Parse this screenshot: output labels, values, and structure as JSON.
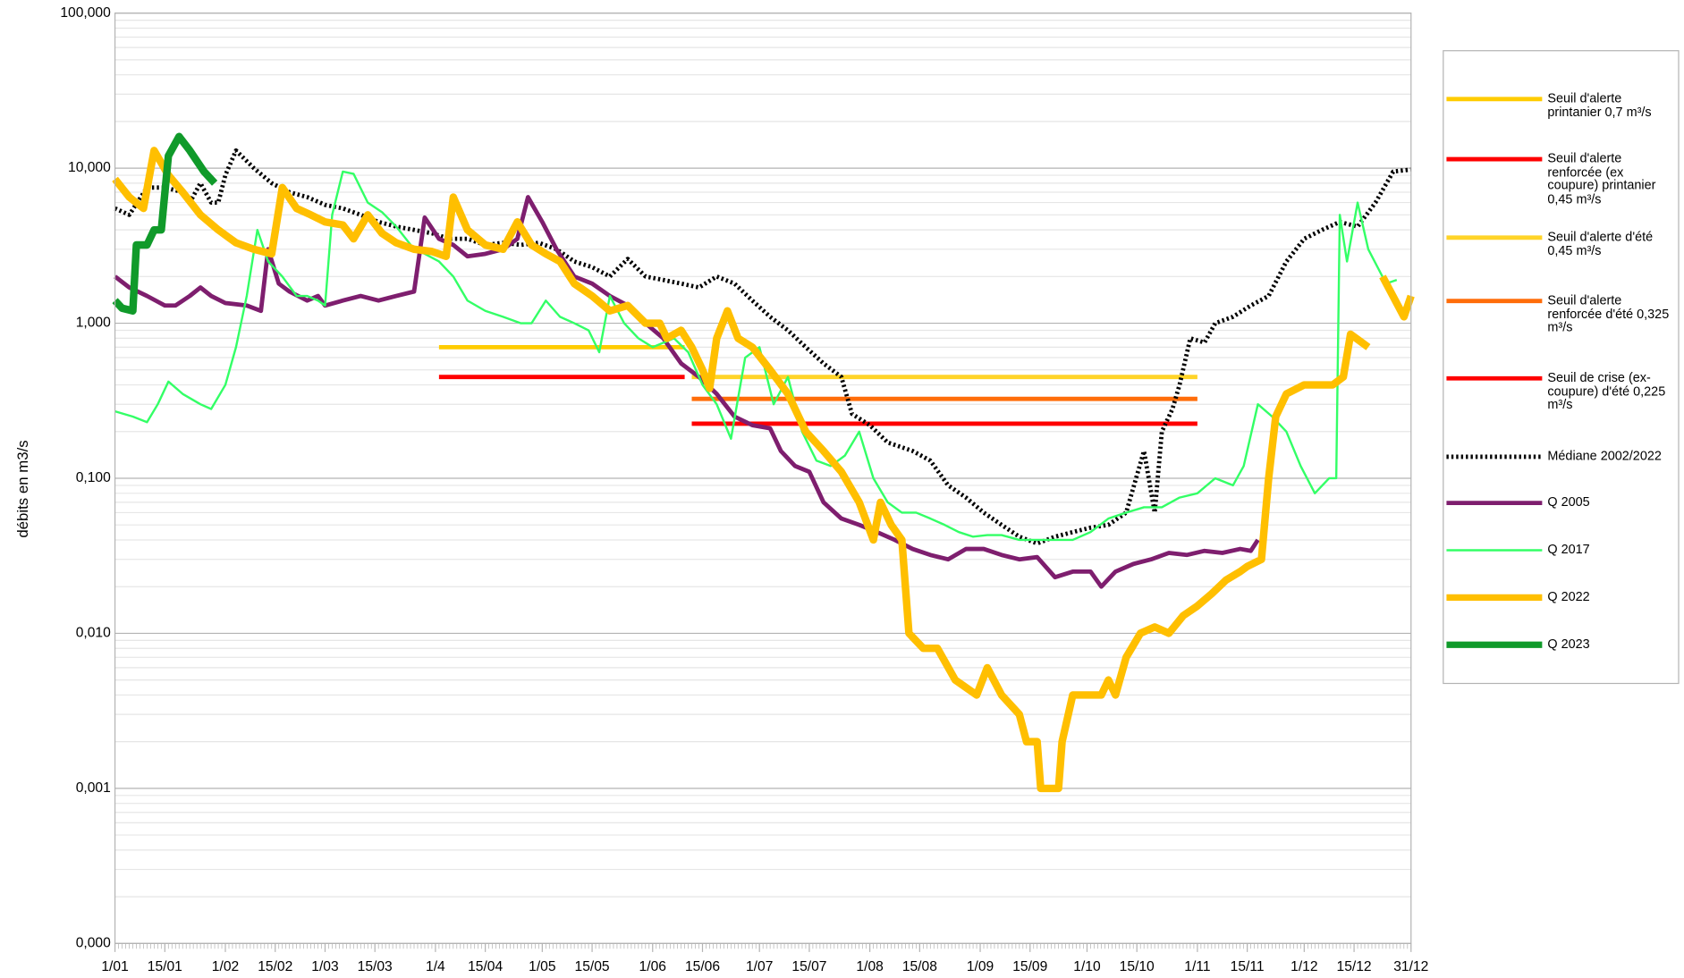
{
  "chart_data": {
    "type": "line",
    "y_label": "débits en m3/s",
    "log_y": true,
    "grid": true,
    "legend": "right",
    "xlim": [
      1,
      365
    ],
    "xticks": [
      {
        "value": 1,
        "label": "1/01"
      },
      {
        "value": 15,
        "label": "15/01"
      },
      {
        "value": 32,
        "label": "1/02"
      },
      {
        "value": 46,
        "label": "15/02"
      },
      {
        "value": 60,
        "label": "1/03"
      },
      {
        "value": 74,
        "label": "15/03"
      },
      {
        "value": 91,
        "label": "1/4"
      },
      {
        "value": 105,
        "label": "15/04"
      },
      {
        "value": 121,
        "label": "1/05"
      },
      {
        "value": 135,
        "label": "15/05"
      },
      {
        "value": 152,
        "label": "1/06"
      },
      {
        "value": 166,
        "label": "15/06"
      },
      {
        "value": 182,
        "label": "1/07"
      },
      {
        "value": 196,
        "label": "15/07"
      },
      {
        "value": 213,
        "label": "1/08"
      },
      {
        "value": 227,
        "label": "15/08"
      },
      {
        "value": 244,
        "label": "1/09"
      },
      {
        "value": 258,
        "label": "15/09"
      },
      {
        "value": 274,
        "label": "1/10"
      },
      {
        "value": 288,
        "label": "15/10"
      },
      {
        "value": 305,
        "label": "1/11"
      },
      {
        "value": 319,
        "label": "15/11"
      },
      {
        "value": 335,
        "label": "1/12"
      },
      {
        "value": 349,
        "label": "15/12"
      },
      {
        "value": 365,
        "label": "31/12"
      }
    ],
    "ylim": [
      0.0001,
      100
    ],
    "yticks": [
      {
        "value": 100,
        "label": "100,000"
      },
      {
        "value": 10,
        "label": "10,000"
      },
      {
        "value": 1,
        "label": "1,000"
      },
      {
        "value": 0.1,
        "label": "0,100"
      },
      {
        "value": 0.01,
        "label": "0,010"
      },
      {
        "value": 0.001,
        "label": "0,001"
      },
      {
        "value": 0.0001,
        "label": "0,000"
      }
    ],
    "series": [
      {
        "name": "Seuil d'alerte printanier 0,7 m³/s",
        "color": "#ffcc00",
        "line_width": 4,
        "x": [
          92,
          161
        ],
        "values": [
          0.7,
          0.7
        ]
      },
      {
        "name": "Seuil d'alerte renforcée (ex coupure) printanier 0,45 m³/s",
        "color": "#ff0000",
        "line_width": 4,
        "x": [
          92,
          161
        ],
        "values": [
          0.45,
          0.45
        ]
      },
      {
        "name": "Seuil d'alerte d'été 0,45 m³/s",
        "color": "#ffd428",
        "line_width": 4,
        "x": [
          163,
          305
        ],
        "values": [
          0.45,
          0.45
        ]
      },
      {
        "name": "Seuil d'alerte renforcée d'été 0,325 m³/s",
        "color": "#ff6d0a",
        "line_width": 4,
        "x": [
          163,
          305
        ],
        "values": [
          0.325,
          0.325
        ]
      },
      {
        "name": "Seuil de crise (ex-coupure) d'été 0,225 m³/s",
        "color": "#ff0000",
        "line_width": 4,
        "x": [
          163,
          305
        ],
        "values": [
          0.225,
          0.225
        ]
      },
      {
        "name": "Médiane 2002/2022",
        "color": "#000000",
        "line_width": 4,
        "dash": true,
        "x": [
          1,
          5,
          10,
          15,
          20,
          22,
          25,
          28,
          30,
          32,
          35,
          40,
          45,
          50,
          55,
          60,
          65,
          70,
          75,
          80,
          85,
          90,
          95,
          100,
          105,
          110,
          115,
          120,
          125,
          130,
          135,
          140,
          145,
          150,
          155,
          160,
          165,
          170,
          175,
          180,
          185,
          190,
          195,
          200,
          205,
          208,
          213,
          218,
          225,
          230,
          235,
          240,
          245,
          250,
          255,
          260,
          265,
          270,
          275,
          280,
          285,
          290,
          293,
          295,
          298,
          300,
          303,
          307,
          310,
          315,
          320,
          325,
          330,
          335,
          340,
          345,
          350,
          355,
          360,
          365
        ],
        "values": [
          5.5,
          5.0,
          7.5,
          7.5,
          7,
          6,
          8,
          6,
          6,
          9,
          13,
          10,
          8,
          7,
          6.5,
          5.8,
          5.5,
          5,
          4.5,
          4.2,
          4.0,
          3.8,
          3.5,
          3.5,
          3.2,
          3.3,
          3.2,
          3.3,
          3.0,
          2.5,
          2.3,
          2.0,
          2.6,
          2.0,
          1.9,
          1.8,
          1.7,
          2.0,
          1.8,
          1.4,
          1.1,
          0.9,
          0.7,
          0.55,
          0.45,
          0.26,
          0.22,
          0.17,
          0.15,
          0.13,
          0.09,
          0.075,
          0.06,
          0.05,
          0.042,
          0.038,
          0.042,
          0.045,
          0.048,
          0.05,
          0.06,
          0.15,
          0.06,
          0.2,
          0.28,
          0.4,
          0.8,
          0.75,
          1.0,
          1.1,
          1.3,
          1.5,
          2.5,
          3.5,
          4.0,
          4.5,
          4.2,
          6,
          9.5,
          9.8
        ]
      },
      {
        "name": "Q 2005",
        "color": "#7e1e6e",
        "line_width": 4,
        "x": [
          1,
          5,
          10,
          15,
          18,
          22,
          25,
          28,
          32,
          38,
          42,
          44,
          47,
          50,
          55,
          58,
          60,
          65,
          70,
          75,
          80,
          85,
          88,
          92,
          96,
          100,
          105,
          110,
          114,
          117,
          121,
          125,
          130,
          135,
          140,
          145,
          150,
          155,
          160,
          165,
          170,
          175,
          180,
          185,
          188,
          192,
          196,
          200,
          205,
          210,
          215,
          220,
          225,
          230,
          235,
          240,
          245,
          250,
          255,
          260,
          265,
          270,
          275,
          278,
          282,
          287,
          292,
          297,
          302,
          307,
          312,
          317,
          320,
          322
        ],
        "values": [
          2.0,
          1.7,
          1.5,
          1.3,
          1.3,
          1.5,
          1.7,
          1.5,
          1.35,
          1.3,
          1.2,
          3.0,
          1.8,
          1.6,
          1.4,
          1.5,
          1.3,
          1.4,
          1.5,
          1.4,
          1.5,
          1.6,
          4.8,
          3.5,
          3.2,
          2.7,
          2.8,
          3.0,
          3.5,
          6.5,
          4.5,
          3.0,
          2.0,
          1.8,
          1.5,
          1.3,
          1.0,
          0.8,
          0.55,
          0.45,
          0.35,
          0.25,
          0.22,
          0.21,
          0.15,
          0.12,
          0.11,
          0.07,
          0.055,
          0.05,
          0.045,
          0.04,
          0.035,
          0.032,
          0.03,
          0.035,
          0.035,
          0.032,
          0.03,
          0.031,
          0.023,
          0.025,
          0.025,
          0.02,
          0.025,
          0.028,
          0.03,
          0.033,
          0.032,
          0.034,
          0.033,
          0.035,
          0.034,
          0.04
        ]
      },
      {
        "name": "Q 2017",
        "color": "#33ff66",
        "line_width": 2,
        "x": [
          1,
          6,
          10,
          13,
          16,
          20,
          25,
          28,
          32,
          35,
          38,
          41,
          44,
          48,
          52,
          55,
          58,
          60,
          62,
          65,
          68,
          72,
          76,
          80,
          85,
          88,
          92,
          96,
          100,
          105,
          110,
          115,
          118,
          122,
          126,
          130,
          134,
          137,
          140,
          144,
          148,
          152,
          158,
          162,
          166,
          170,
          174,
          178,
          182,
          186,
          190,
          194,
          198,
          202,
          206,
          210,
          214,
          218,
          222,
          226,
          230,
          234,
          238,
          242,
          246,
          250,
          255,
          260,
          265,
          270,
          275,
          280,
          285,
          290,
          295,
          300,
          305,
          310,
          315,
          318,
          322,
          326,
          330,
          334,
          338,
          342,
          344,
          345,
          347,
          350,
          353,
          358,
          361
        ],
        "values": [
          0.27,
          0.25,
          0.23,
          0.3,
          0.42,
          0.35,
          0.3,
          0.28,
          0.4,
          0.7,
          1.5,
          4.0,
          2.5,
          2.0,
          1.5,
          1.5,
          1.4,
          1.3,
          5,
          9.5,
          9.2,
          6,
          5.2,
          4.2,
          3.0,
          2.8,
          2.5,
          2.0,
          1.4,
          1.2,
          1.1,
          1.0,
          1.0,
          1.4,
          1.1,
          1.0,
          0.9,
          0.65,
          1.5,
          1.0,
          0.8,
          0.7,
          0.8,
          0.65,
          0.4,
          0.3,
          0.18,
          0.6,
          0.7,
          0.3,
          0.45,
          0.2,
          0.13,
          0.12,
          0.14,
          0.2,
          0.1,
          0.07,
          0.06,
          0.06,
          0.055,
          0.05,
          0.045,
          0.042,
          0.043,
          0.043,
          0.04,
          0.04,
          0.04,
          0.04,
          0.045,
          0.055,
          0.06,
          0.065,
          0.065,
          0.075,
          0.08,
          0.1,
          0.09,
          0.12,
          0.3,
          0.25,
          0.2,
          0.12,
          0.08,
          0.1,
          0.1,
          5.0,
          2.5,
          6.0,
          3.0,
          1.8,
          1.9
        ]
      },
      {
        "name": "Q 2022",
        "color": "#ffbf00",
        "line_width": 7,
        "x": [
          1,
          5,
          9,
          12,
          16,
          20,
          25,
          30,
          35,
          40,
          45,
          48,
          52,
          56,
          60,
          65,
          68,
          72,
          76,
          80,
          85,
          90,
          94,
          96,
          100,
          105,
          110,
          114,
          118,
          122,
          126,
          130,
          135,
          140,
          145,
          150,
          154,
          156,
          160,
          163,
          166,
          168,
          170,
          173,
          176,
          180,
          185,
          190,
          195,
          200,
          205,
          210,
          214,
          216,
          219,
          222,
          224,
          228,
          232,
          237,
          243,
          246,
          250,
          255,
          257,
          260,
          261,
          266,
          267,
          270,
          278,
          280,
          282,
          285,
          289,
          293,
          297,
          301,
          305,
          309,
          313,
          317,
          319,
          323,
          325,
          327,
          330,
          335,
          343,
          346,
          348,
          353,
          356,
          357,
          363,
          365
        ],
        "values": [
          8.5,
          6.5,
          5.5,
          13,
          9,
          7,
          5,
          4,
          3.3,
          3.0,
          2.8,
          7.5,
          5.5,
          5.0,
          4.5,
          4.3,
          3.5,
          5.0,
          3.8,
          3.3,
          3.0,
          2.9,
          2.7,
          6.5,
          4.0,
          3.2,
          3.0,
          4.5,
          3.2,
          2.8,
          2.5,
          1.8,
          1.5,
          1.2,
          1.3,
          1.0,
          1.0,
          0.8,
          0.9,
          0.7,
          0.5,
          0.38,
          0.8,
          1.2,
          0.8,
          0.7,
          0.5,
          0.35,
          0.2,
          0.15,
          0.11,
          0.07,
          0.04,
          0.07,
          0.05,
          0.04,
          0.01,
          0.008,
          0.008,
          0.005,
          0.004,
          0.006,
          0.004,
          0.003,
          0.002,
          0.002,
          0.001,
          0.001,
          0.002,
          0.004,
          0.004,
          0.005,
          0.004,
          0.007,
          0.01,
          0.011,
          0.01,
          0.013,
          0.015,
          0.018,
          0.022,
          0.025,
          0.027,
          0.03,
          0.1,
          0.25,
          0.35,
          0.4,
          0.4,
          0.45,
          0.85,
          0.7,
          null,
          2.0,
          1.1,
          1.5
        ]
      },
      {
        "name": "Q 2023",
        "color": "#109a2a",
        "line_width": 7,
        "x": [
          1,
          3,
          6,
          7,
          10,
          12,
          14,
          16,
          19,
          22,
          26,
          29
        ],
        "values": [
          1.4,
          1.25,
          1.2,
          3.2,
          3.2,
          4.0,
          4.0,
          12,
          16,
          13,
          9.5,
          8.0
        ]
      }
    ]
  }
}
